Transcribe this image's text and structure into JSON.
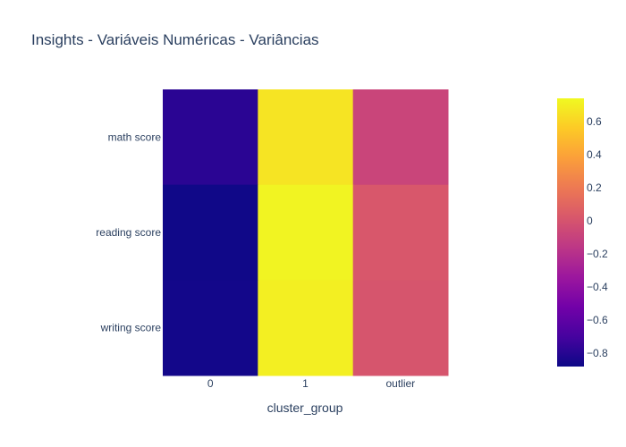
{
  "chart_data": {
    "type": "heatmap",
    "title": "Insights - Variáveis Numéricas - Variâncias",
    "xlabel": "cluster_group",
    "ylabel": "",
    "x_categories": [
      "0",
      "1",
      "outlier"
    ],
    "y_categories": [
      "math score",
      "reading score",
      "writing score"
    ],
    "z": [
      [
        -0.79,
        0.66,
        -0.08
      ],
      [
        -0.87,
        0.72,
        0.02
      ],
      [
        -0.86,
        0.7,
        0.01
      ]
    ],
    "colorscale": "plasma",
    "zmin": -0.88,
    "zmax": 0.74,
    "colorbar": {
      "ticks": [
        -0.8,
        -0.6,
        -0.4,
        -0.2,
        0,
        0.2,
        0.4,
        0.6
      ],
      "tick_labels": [
        "−0.8",
        "−0.6",
        "−0.4",
        "−0.2",
        "0",
        "0.2",
        "0.4",
        "0.6"
      ]
    },
    "colors": {
      "text": "#2a3f5f",
      "background": "#ffffff"
    }
  }
}
